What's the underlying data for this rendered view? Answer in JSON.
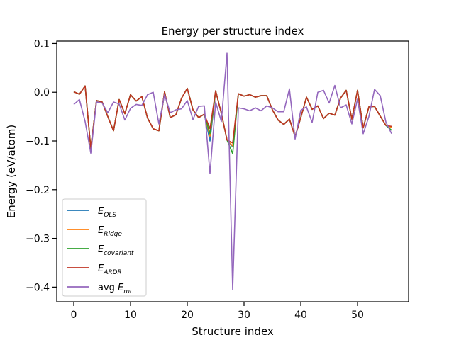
{
  "chart_data": {
    "type": "line",
    "title": "Energy per structure index",
    "xlabel": "Structure index",
    "ylabel": "Energy (eV/atom)",
    "xlim": [
      -3,
      59
    ],
    "ylim": [
      -0.43,
      0.105
    ],
    "xticks": [
      0,
      10,
      20,
      30,
      40,
      50
    ],
    "yticks": [
      0.1,
      0.0,
      -0.1,
      -0.2,
      -0.3,
      -0.4
    ],
    "ytick_labels": [
      "0.1",
      "0.0",
      "−0.1",
      "−0.2",
      "−0.3",
      "−0.4"
    ],
    "grid": false,
    "legend_position": "lower-left",
    "x": [
      0,
      1,
      2,
      3,
      4,
      5,
      6,
      7,
      8,
      9,
      10,
      11,
      12,
      13,
      14,
      15,
      16,
      17,
      18,
      19,
      20,
      21,
      22,
      23,
      24,
      25,
      26,
      27,
      28,
      29,
      30,
      31,
      32,
      33,
      34,
      35,
      36,
      37,
      38,
      39,
      40,
      41,
      42,
      43,
      44,
      45,
      46,
      47,
      48,
      49,
      50,
      51,
      52,
      53,
      54,
      55,
      56
    ],
    "series": [
      {
        "name": "E_OLS",
        "label_main": "E",
        "label_sub": "OLS",
        "color": "#1f77b4",
        "values": [
          0.001,
          -0.004,
          0.013,
          -0.115,
          -0.017,
          -0.02,
          -0.05,
          -0.079,
          -0.015,
          -0.044,
          -0.005,
          -0.018,
          -0.009,
          -0.053,
          -0.075,
          -0.079,
          0.001,
          -0.052,
          -0.046,
          -0.012,
          0.008,
          -0.036,
          -0.052,
          -0.045,
          -0.1,
          0.003,
          -0.043,
          -0.098,
          -0.112,
          -0.003,
          -0.008,
          -0.005,
          -0.01,
          -0.007,
          -0.007,
          -0.036,
          -0.057,
          -0.066,
          -0.055,
          -0.091,
          -0.052,
          -0.01,
          -0.035,
          -0.028,
          -0.054,
          -0.043,
          -0.047,
          -0.012,
          0.004,
          -0.055,
          0.004,
          -0.073,
          -0.03,
          -0.029,
          -0.049,
          -0.068,
          -0.072
        ]
      },
      {
        "name": "E_Ridge",
        "label_main": "E",
        "label_sub": "Ridge",
        "color": "#ff7f0e",
        "values": [
          0.001,
          -0.004,
          0.013,
          -0.115,
          -0.017,
          -0.02,
          -0.05,
          -0.079,
          -0.015,
          -0.044,
          -0.005,
          -0.018,
          -0.009,
          -0.053,
          -0.075,
          -0.079,
          0.001,
          -0.052,
          -0.046,
          -0.012,
          0.008,
          -0.036,
          -0.052,
          -0.045,
          -0.09,
          0.003,
          -0.043,
          -0.098,
          -0.11,
          -0.003,
          -0.008,
          -0.005,
          -0.01,
          -0.007,
          -0.007,
          -0.036,
          -0.057,
          -0.066,
          -0.055,
          -0.091,
          -0.052,
          -0.01,
          -0.035,
          -0.028,
          -0.054,
          -0.043,
          -0.047,
          -0.012,
          0.004,
          -0.055,
          0.004,
          -0.073,
          -0.03,
          -0.029,
          -0.049,
          -0.068,
          -0.072
        ]
      },
      {
        "name": "E_covariant",
        "label_main": "E",
        "label_sub": "covariant",
        "color": "#2ca02c",
        "values": [
          0.001,
          -0.004,
          0.013,
          -0.115,
          -0.017,
          -0.02,
          -0.05,
          -0.079,
          -0.015,
          -0.044,
          -0.005,
          -0.018,
          -0.009,
          -0.053,
          -0.075,
          -0.079,
          0.001,
          -0.052,
          -0.046,
          -0.012,
          0.008,
          -0.036,
          -0.052,
          -0.045,
          -0.085,
          0.003,
          -0.043,
          -0.098,
          -0.126,
          -0.003,
          -0.008,
          -0.005,
          -0.01,
          -0.007,
          -0.007,
          -0.036,
          -0.057,
          -0.066,
          -0.055,
          -0.091,
          -0.052,
          -0.01,
          -0.035,
          -0.028,
          -0.054,
          -0.043,
          -0.047,
          -0.012,
          0.004,
          -0.055,
          0.004,
          -0.073,
          -0.03,
          -0.029,
          -0.049,
          -0.068,
          -0.078
        ]
      },
      {
        "name": "E_ARDR",
        "label_main": "E",
        "label_sub": "ARDR",
        "color": "#c03524",
        "values": [
          0.001,
          -0.004,
          0.013,
          -0.115,
          -0.017,
          -0.02,
          -0.05,
          -0.079,
          -0.015,
          -0.044,
          -0.005,
          -0.018,
          -0.009,
          -0.053,
          -0.075,
          -0.079,
          0.001,
          -0.052,
          -0.046,
          -0.012,
          0.008,
          -0.036,
          -0.052,
          -0.045,
          -0.075,
          0.003,
          -0.043,
          -0.098,
          -0.104,
          -0.003,
          -0.008,
          -0.005,
          -0.01,
          -0.007,
          -0.007,
          -0.036,
          -0.057,
          -0.066,
          -0.055,
          -0.091,
          -0.052,
          -0.01,
          -0.035,
          -0.028,
          -0.054,
          -0.043,
          -0.047,
          -0.012,
          0.004,
          -0.055,
          0.004,
          -0.073,
          -0.03,
          -0.029,
          -0.049,
          -0.068,
          -0.07
        ]
      },
      {
        "name": "avg E_mc",
        "label_prefix": "avg ",
        "label_main": "E",
        "label_sub": "mc",
        "color": "#9467bd",
        "values": [
          -0.025,
          -0.015,
          -0.06,
          -0.125,
          -0.02,
          -0.022,
          -0.042,
          -0.02,
          -0.024,
          -0.057,
          -0.033,
          -0.025,
          -0.027,
          -0.005,
          0.0,
          -0.065,
          -0.005,
          -0.042,
          -0.036,
          -0.034,
          -0.017,
          -0.056,
          -0.029,
          -0.028,
          -0.167,
          -0.02,
          -0.06,
          0.08,
          -0.405,
          -0.032,
          -0.034,
          -0.038,
          -0.032,
          -0.038,
          -0.028,
          -0.032,
          -0.04,
          -0.04,
          0.007,
          -0.096,
          -0.037,
          -0.03,
          -0.062,
          0.0,
          0.004,
          -0.022,
          0.014,
          -0.032,
          -0.026,
          -0.065,
          -0.014,
          -0.085,
          -0.05,
          0.006,
          -0.007,
          -0.061,
          -0.085
        ]
      }
    ]
  }
}
